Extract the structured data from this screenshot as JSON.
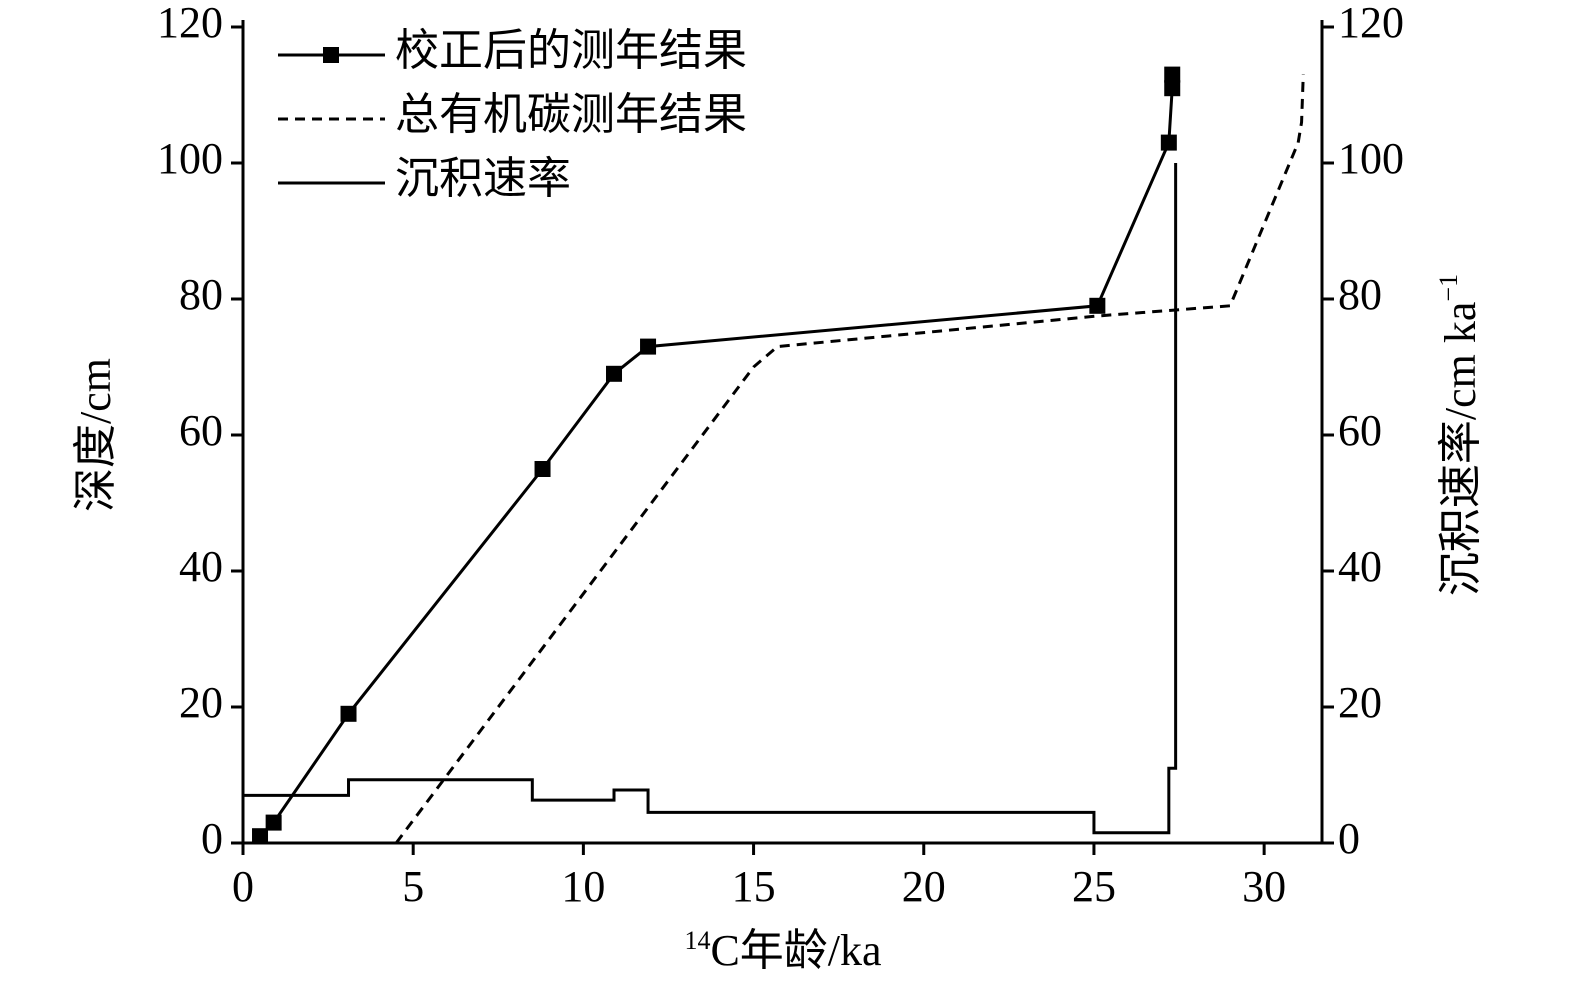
{
  "chart_data": {
    "type": "line",
    "xlabel_sup": "14",
    "xlabel": "C年龄/ka",
    "ylabel": "深度/cm",
    "y2label": "沉积速率/cm ka",
    "y2label_sup": "−1",
    "xlim": [
      0,
      31.7
    ],
    "xticks": [
      0,
      5,
      10,
      15,
      20,
      25,
      30
    ],
    "ylim": [
      0,
      120
    ],
    "yticks": [
      0,
      20,
      40,
      60,
      80,
      100,
      120
    ],
    "y2lim": [
      0,
      120
    ],
    "y2ticks": [
      0,
      20,
      40,
      60,
      80,
      100,
      120
    ],
    "series": [
      {
        "name": "校正后的测年结果",
        "color": "#000000",
        "style": "solid",
        "marker": "square",
        "x": [
          0.5,
          0.9,
          3.1,
          8.8,
          10.9,
          11.9,
          25.1,
          27.2,
          27.3,
          27.3
        ],
        "values": [
          1,
          3,
          19,
          55,
          69,
          73,
          79,
          103,
          111,
          113
        ]
      },
      {
        "name": "总有机碳测年结果",
        "color": "#000000",
        "style": "dashed",
        "x": [
          4.5,
          15.0,
          15.7,
          25.1,
          29.0,
          31.0,
          31.1,
          31.15
        ],
        "values": [
          0,
          70,
          73,
          77.5,
          79,
          103,
          106,
          113
        ]
      },
      {
        "name": "沉积速率",
        "color": "#000000",
        "style": "solid",
        "axis": "y2",
        "x": [
          0,
          3.1,
          3.1,
          8.5,
          8.5,
          10.9,
          10.9,
          11.9,
          11.9,
          25,
          25,
          27.2,
          27.2,
          27.4,
          27.4
        ],
        "values": [
          7,
          7,
          9.3,
          9.3,
          6.3,
          6.3,
          7.8,
          7.8,
          4.5,
          4.5,
          1.5,
          1.5,
          11,
          11,
          100
        ]
      }
    ]
  }
}
